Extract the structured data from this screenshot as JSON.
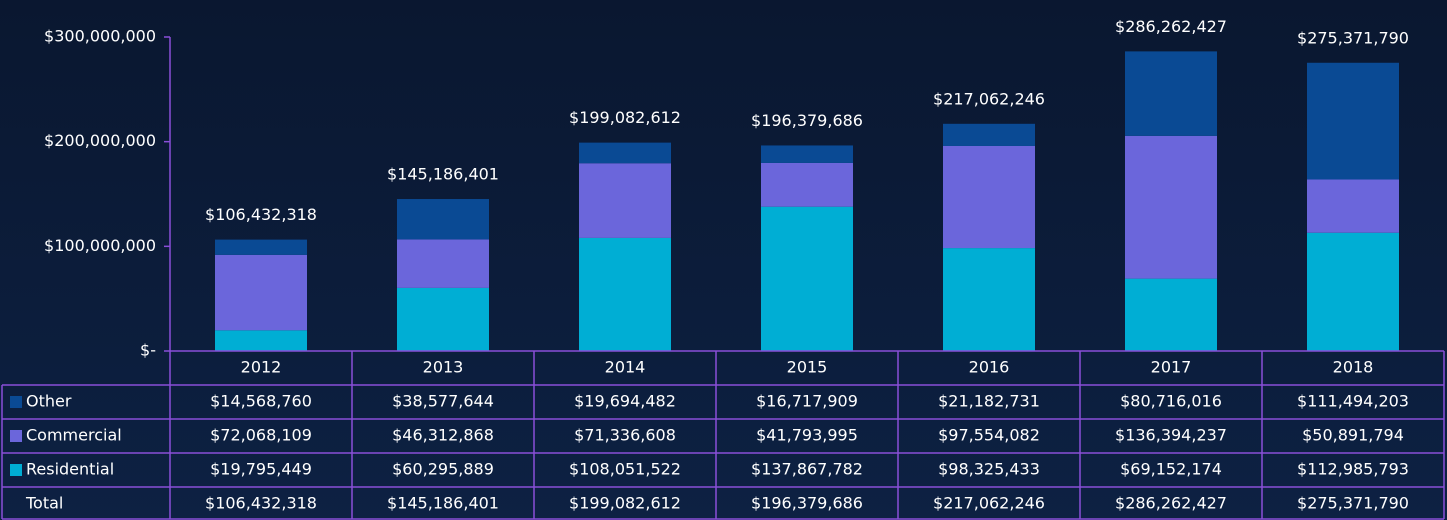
{
  "chart_data": {
    "type": "stacked-bar",
    "categories": [
      "2012",
      "2013",
      "2014",
      "2015",
      "2016",
      "2017",
      "2018"
    ],
    "series": [
      {
        "name": "Other",
        "color": "#0a4a94",
        "values": [
          14568760,
          38577644,
          19694482,
          16717909,
          21182731,
          80716016,
          111494203
        ],
        "value_labels": [
          "$14,568,760",
          "$38,577,644",
          "$19,694,482",
          "$16,717,909",
          "$21,182,731",
          "$80,716,016",
          "$111,494,203"
        ]
      },
      {
        "name": "Commercial",
        "color": "#6b66db",
        "values": [
          72068109,
          46312868,
          71336608,
          41793995,
          97554082,
          136394237,
          50891794
        ],
        "value_labels": [
          "$72,068,109",
          "$46,312,868",
          "$71,336,608",
          "$41,793,995",
          "$97,554,082",
          "$136,394,237",
          "$50,891,794"
        ]
      },
      {
        "name": "Residential",
        "color": "#00aed4",
        "values": [
          19795449,
          60295889,
          108051522,
          137867782,
          98325433,
          69152174,
          112985793
        ],
        "value_labels": [
          "$19,795,449",
          "$60,295,889",
          "$108,051,522",
          "$137,867,782",
          "$98,325,433",
          "$69,152,174",
          "$112,985,793"
        ]
      }
    ],
    "total_row_label": "Total",
    "totals": [
      106432318,
      145186401,
      199082612,
      196379686,
      217062246,
      286262427,
      275371790
    ],
    "totals_labels": [
      "$106,432,318",
      "$145,186,401",
      "$199,082,612",
      "$196,379,686",
      "$217,062,246",
      "$286,262,427",
      "$275,371,790"
    ],
    "ylim": [
      0,
      300000000
    ],
    "yticks": [
      {
        "value": 0,
        "label": "$-"
      },
      {
        "value": 100000000,
        "label": "$100,000,000"
      },
      {
        "value": 200000000,
        "label": "$200,000,000"
      },
      {
        "value": 300000000,
        "label": "$300,000,000"
      }
    ],
    "grid": false
  }
}
